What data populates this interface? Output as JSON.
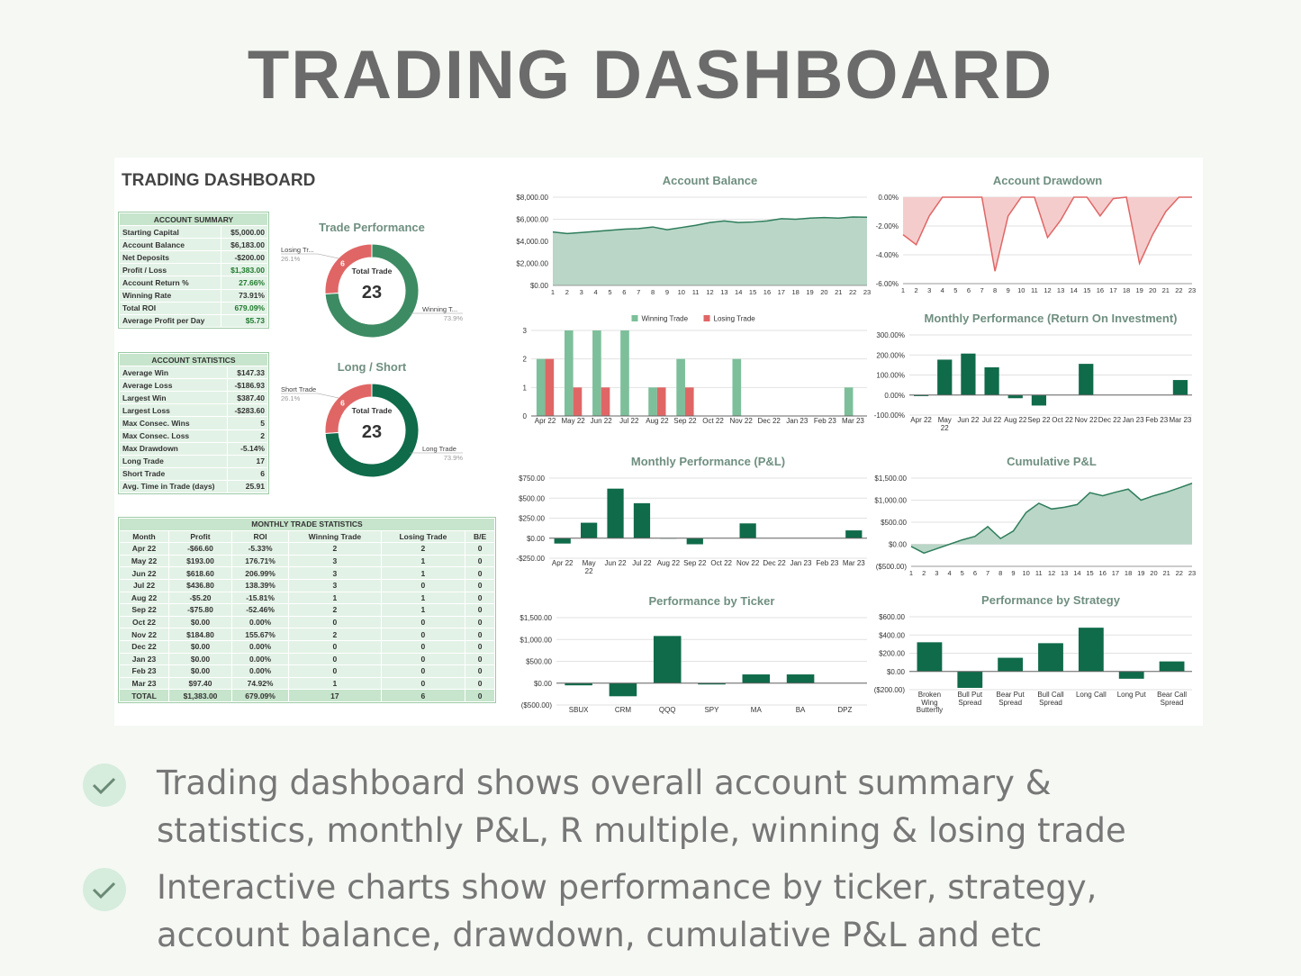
{
  "header": {
    "title": "TRADING DASHBOARD"
  },
  "dashboard_title": "TRADING DASHBOARD",
  "account_summary": {
    "title": "ACCOUNT SUMMARY",
    "rows": [
      [
        "Starting Capital",
        "$5,000.00"
      ],
      [
        "Account Balance",
        "$6,183.00"
      ],
      [
        "Net Deposits",
        "-$200.00"
      ],
      [
        "Profit / Loss",
        "$1,383.00"
      ],
      [
        "Account Return %",
        "27.66%"
      ],
      [
        "Winning Rate",
        "73.91%"
      ],
      [
        "Total ROI",
        "679.09%"
      ],
      [
        "Average Profit per Day",
        "$5.73"
      ]
    ]
  },
  "account_statistics": {
    "title": "ACCOUNT STATISTICS",
    "rows": [
      [
        "Average Win",
        "$147.33"
      ],
      [
        "Average Loss",
        "-$186.93"
      ],
      [
        "Largest Win",
        "$387.40"
      ],
      [
        "Largest Loss",
        "-$283.60"
      ],
      [
        "Max Consec. Wins",
        "5"
      ],
      [
        "Max Consec. Loss",
        "2"
      ],
      [
        "Max Drawdown",
        "-5.14%"
      ],
      [
        "Long Trade",
        "17"
      ],
      [
        "Short Trade",
        "6"
      ],
      [
        "Avg. Time in Trade (days)",
        "25.91"
      ]
    ]
  },
  "monthly_trade_statistics": {
    "title": "MONTHLY TRADE STATISTICS",
    "columns": [
      "Month",
      "Profit",
      "ROI",
      "Winning Trade",
      "Losing Trade",
      "B/E"
    ],
    "rows": [
      [
        "Apr 22",
        "-$66.60",
        "-5.33%",
        "2",
        "2",
        "0"
      ],
      [
        "May 22",
        "$193.00",
        "176.71%",
        "3",
        "1",
        "0"
      ],
      [
        "Jun 22",
        "$618.60",
        "206.99%",
        "3",
        "1",
        "0"
      ],
      [
        "Jul 22",
        "$436.80",
        "138.39%",
        "3",
        "0",
        "0"
      ],
      [
        "Aug 22",
        "-$5.20",
        "-15.81%",
        "1",
        "1",
        "0"
      ],
      [
        "Sep 22",
        "-$75.80",
        "-52.46%",
        "2",
        "1",
        "0"
      ],
      [
        "Oct 22",
        "$0.00",
        "0.00%",
        "0",
        "0",
        "0"
      ],
      [
        "Nov 22",
        "$184.80",
        "155.67%",
        "2",
        "0",
        "0"
      ],
      [
        "Dec 22",
        "$0.00",
        "0.00%",
        "0",
        "0",
        "0"
      ],
      [
        "Jan 23",
        "$0.00",
        "0.00%",
        "0",
        "0",
        "0"
      ],
      [
        "Feb 23",
        "$0.00",
        "0.00%",
        "0",
        "0",
        "0"
      ],
      [
        "Mar 23",
        "$97.40",
        "74.92%",
        "1",
        "0",
        "0"
      ],
      [
        "TOTAL",
        "$1,383.00",
        "679.09%",
        "17",
        "6",
        "0"
      ]
    ]
  },
  "bullets": [
    "Trading dashboard shows overall account summary & statistics, monthly P&L, R multiple, winning & losing trade",
    "Interactive charts show performance by ticker, strategy, account balance, drawdown, cumulative P&L and etc"
  ],
  "chart_data": [
    {
      "type": "area",
      "title": "Account Balance",
      "categories": [
        "1",
        "2",
        "3",
        "4",
        "5",
        "6",
        "7",
        "8",
        "9",
        "10",
        "11",
        "12",
        "13",
        "14",
        "15",
        "16",
        "17",
        "18",
        "19",
        "20",
        "21",
        "22",
        "23"
      ],
      "values": [
        4850,
        4700,
        4800,
        4900,
        5000,
        5100,
        5150,
        5300,
        5050,
        5250,
        5450,
        5700,
        5850,
        5700,
        5750,
        5850,
        6050,
        6000,
        6100,
        6150,
        6100,
        6200,
        6183
      ],
      "color": "#2e7d5b",
      "fill": "#b9d6c7",
      "ylim": [
        0,
        8000
      ],
      "yticks": [
        {
          "value": 0,
          "label": "$0.00"
        },
        {
          "value": 2000,
          "label": "$2,000.00"
        },
        {
          "value": 4000,
          "label": "$4,000.00"
        },
        {
          "value": 6000,
          "label": "$6,000.00"
        },
        {
          "value": 8000,
          "label": "$8,000.00"
        }
      ]
    },
    {
      "type": "area",
      "title": "Account Drawdown",
      "categories": [
        "1",
        "2",
        "3",
        "4",
        "5",
        "6",
        "7",
        "8",
        "9",
        "10",
        "11",
        "12",
        "13",
        "14",
        "15",
        "16",
        "17",
        "18",
        "19",
        "20",
        "21",
        "22",
        "23"
      ],
      "values": [
        -2.6,
        -3.3,
        -1.3,
        0,
        0,
        0,
        0,
        -5.14,
        -1.3,
        0,
        0,
        -2.8,
        -1.6,
        0,
        0,
        -1.3,
        -0.1,
        0,
        -4.6,
        -2.6,
        -1.0,
        0,
        0
      ],
      "color": "#e06666",
      "fill": "#f5cccc",
      "ylim": [
        -6,
        0
      ],
      "yticks": [
        {
          "value": 0,
          "label": "0.00%"
        },
        {
          "value": -2,
          "label": "-2.00%"
        },
        {
          "value": -4,
          "label": "-4.00%"
        },
        {
          "value": -6,
          "label": "-6.00%"
        }
      ]
    },
    {
      "type": "bar",
      "categories": [
        "Apr 22",
        "May 22",
        "Jun 22",
        "Jul 22",
        "Aug 22",
        "Sep 22",
        "Oct 22",
        "Nov 22",
        "Dec 22",
        "Jan 23",
        "Feb 23",
        "Mar 23"
      ],
      "series": [
        {
          "name": "Winning Trade",
          "color": "#7dbf9a",
          "values": [
            2,
            3,
            3,
            3,
            1,
            2,
            0,
            2,
            0,
            0,
            0,
            1
          ]
        },
        {
          "name": "Losing Trade",
          "color": "#e06666",
          "values": [
            2,
            1,
            1,
            0,
            1,
            1,
            0,
            0,
            0,
            0,
            0,
            0
          ]
        }
      ],
      "ylim": [
        0,
        3
      ],
      "yticks": [
        0,
        1,
        2,
        3
      ]
    },
    {
      "type": "bar",
      "title": "Monthly Performance (Return On Investment)",
      "categories": [
        "Apr 22",
        "May 22",
        "Jun 22",
        "Jul 22",
        "Aug 22",
        "Sep 22",
        "Oct 22",
        "Nov 22",
        "Dec 22",
        "Jan 23",
        "Feb 23",
        "Mar 23"
      ],
      "values": [
        -5.33,
        176.71,
        206.99,
        138.39,
        -15.81,
        -52.46,
        0,
        155.67,
        0,
        0,
        0,
        74.92
      ],
      "color": "#0f6b4a",
      "ylim": [
        -100,
        300
      ],
      "yticks": [
        {
          "value": -100,
          "label": "-100.00%"
        },
        {
          "value": 0,
          "label": "0.00%"
        },
        {
          "value": 100,
          "label": "100.00%"
        },
        {
          "value": 200,
          "label": "200.00%"
        },
        {
          "value": 300,
          "label": "300.00%"
        }
      ]
    },
    {
      "type": "bar",
      "title": "Monthly Performance (P&L)",
      "categories": [
        "Apr 22",
        "May 22",
        "Jun 22",
        "Jul 22",
        "Aug 22",
        "Sep 22",
        "Oct 22",
        "Nov 22",
        "Dec 22",
        "Jan 23",
        "Feb 23",
        "Mar 23"
      ],
      "values": [
        -66.6,
        193,
        618.6,
        436.8,
        -5.2,
        -75.8,
        0,
        184.8,
        0,
        0,
        0,
        97.4
      ],
      "color": "#0f6b4a",
      "ylim": [
        -250,
        750
      ],
      "yticks": [
        {
          "value": -250,
          "label": "-$250.00"
        },
        {
          "value": 0,
          "label": "$0.00"
        },
        {
          "value": 250,
          "label": "$250.00"
        },
        {
          "value": 500,
          "label": "$500.00"
        },
        {
          "value": 750,
          "label": "$750.00"
        }
      ]
    },
    {
      "type": "area",
      "title": "Cumulative P&L",
      "categories": [
        "1",
        "2",
        "3",
        "4",
        "5",
        "6",
        "7",
        "8",
        "9",
        "10",
        "11",
        "12",
        "13",
        "14",
        "15",
        "16",
        "17",
        "18",
        "19",
        "20",
        "21",
        "22",
        "23"
      ],
      "values": [
        -50,
        -200,
        -100,
        0,
        100,
        180,
        400,
        130,
        300,
        720,
        930,
        800,
        840,
        900,
        1170,
        1100,
        1180,
        1250,
        1000,
        1100,
        1180,
        1280,
        1383
      ],
      "color": "#2e7d5b",
      "fill": "#b9d6c7",
      "ylim": [
        -500,
        1500
      ],
      "yticks": [
        {
          "value": -500,
          "label": "($500.00)"
        },
        {
          "value": 0,
          "label": "$0.00"
        },
        {
          "value": 500,
          "label": "$500.00"
        },
        {
          "value": 1000,
          "label": "$1,000.00"
        },
        {
          "value": 1500,
          "label": "$1,500.00"
        }
      ]
    },
    {
      "type": "bar",
      "title": "Performance by Ticker",
      "categories": [
        "SBUX",
        "CRM",
        "QQQ",
        "SPY",
        "MA",
        "BA",
        "DPZ"
      ],
      "values": [
        -50,
        -300,
        1080,
        -30,
        200,
        200,
        0
      ],
      "color": "#0f6b4a",
      "ylim": [
        -500,
        1500
      ],
      "yticks": [
        {
          "value": -500,
          "label": "($500.00)"
        },
        {
          "value": 0,
          "label": "$0.00"
        },
        {
          "value": 500,
          "label": "$500.00"
        },
        {
          "value": 1000,
          "label": "$1,000.00"
        },
        {
          "value": 1500,
          "label": "$1,500.00"
        }
      ]
    },
    {
      "type": "bar",
      "title": "Performance by Strategy",
      "categories": [
        "Broken Wing Butterfly",
        "Bull Put Spread",
        "Bear Put Spread",
        "Bull Call Spread",
        "Long Call",
        "Long Put",
        "Bear Call Spread"
      ],
      "values": [
        320,
        -180,
        150,
        310,
        480,
        -80,
        110
      ],
      "color": "#0f6b4a",
      "ylim": [
        -200,
        600
      ],
      "yticks": [
        {
          "value": -200,
          "label": "($200.00)"
        },
        {
          "value": 0,
          "label": "$0.00"
        },
        {
          "value": 200,
          "label": "$200.00"
        },
        {
          "value": 400,
          "label": "$400.00"
        },
        {
          "value": 600,
          "label": "$600.00"
        }
      ]
    },
    {
      "type": "donut",
      "title": "Trade Performance",
      "categories": [
        "Losing Tr...",
        "Winning T..."
      ],
      "values": [
        6,
        17
      ],
      "share_labels": [
        "26.1%",
        "73.9%"
      ],
      "colors": [
        "#e06666",
        "#3d8b63"
      ],
      "center_label": "Total Trade",
      "center_value": 23
    },
    {
      "type": "donut",
      "title": "Long / Short",
      "categories": [
        "Short Trade",
        "Long Trade"
      ],
      "values": [
        6,
        17
      ],
      "share_labels": [
        "26.1%",
        "73.9%"
      ],
      "colors": [
        "#e06666",
        "#0f6b4a"
      ],
      "center_label": "Total Trade",
      "center_value": 23
    }
  ]
}
